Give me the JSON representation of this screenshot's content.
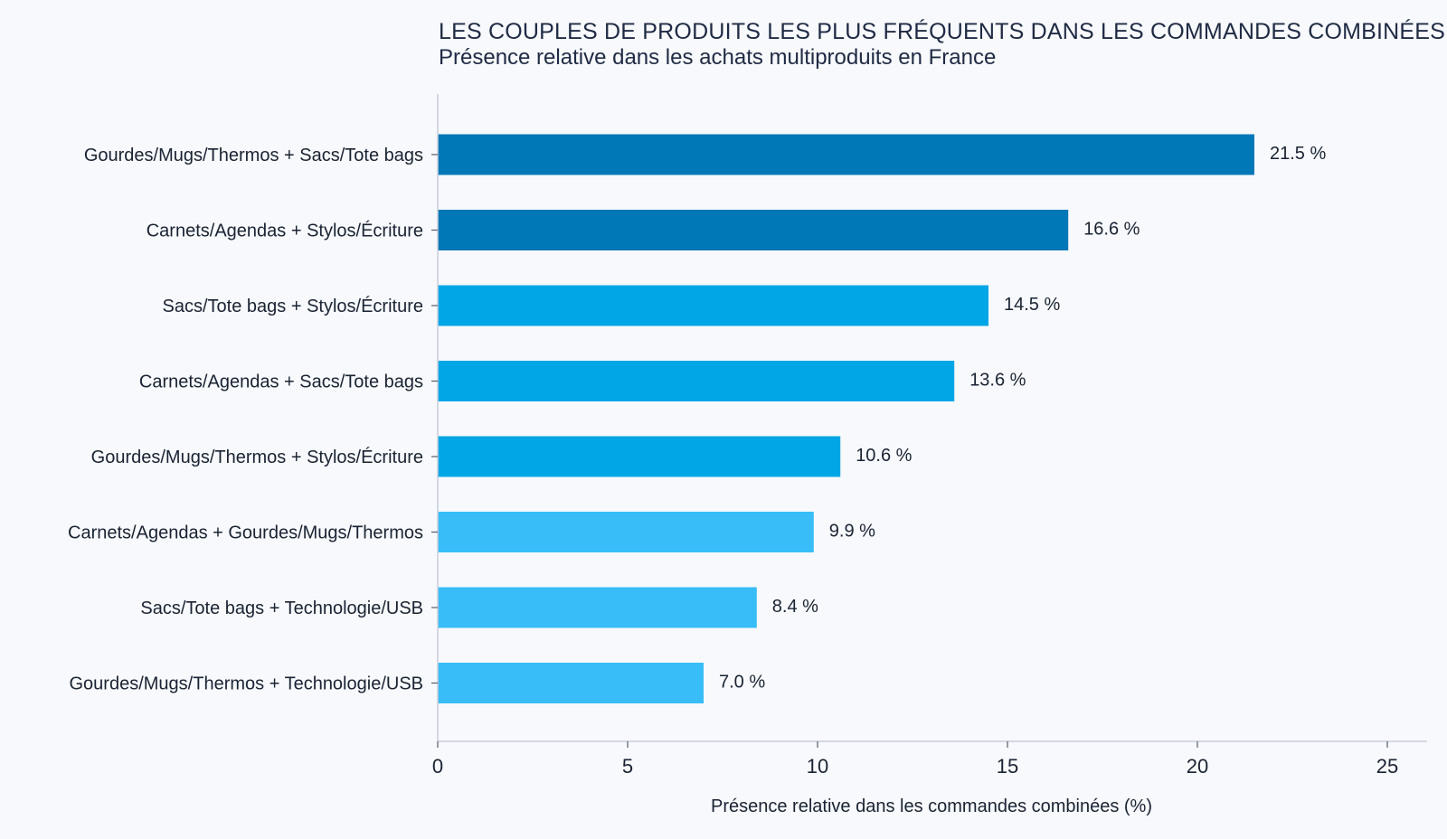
{
  "chart_data": {
    "type": "bar",
    "orientation": "horizontal",
    "title": "LES COUPLES DE PRODUITS LES PLUS FRÉQUENTS DANS LES COMMANDES COMBINÉES",
    "subtitle": "Présence relative dans les achats multiproduits en France",
    "xlabel": "Présence relative dans les commandes combinées (%)",
    "ylabel": "",
    "xlim": [
      0,
      26
    ],
    "xticks": [
      0,
      5,
      10,
      15,
      20,
      25
    ],
    "grid": false,
    "categories": [
      "Gourdes/Mugs/Thermos + Sacs/Tote bags",
      "Carnets/Agendas + Stylos/Écriture",
      "Sacs/Tote bags + Stylos/Écriture",
      "Carnets/Agendas + Sacs/Tote bags",
      "Gourdes/Mugs/Thermos + Stylos/Écriture",
      "Carnets/Agendas + Gourdes/Mugs/Thermos",
      "Sacs/Tote bags + Technologie/USB",
      "Gourdes/Mugs/Thermos + Technologie/USB"
    ],
    "values": [
      21.5,
      16.6,
      14.5,
      13.6,
      10.6,
      9.9,
      8.4,
      7.0
    ],
    "value_labels": [
      "21.5 %",
      "16.6 %",
      "14.5 %",
      "13.6 %",
      "10.6 %",
      "9.9 %",
      "8.4 %",
      "7.0 %"
    ],
    "bar_colors": [
      "#0077b6",
      "#0077b6",
      "#00a6e6",
      "#00a6e6",
      "#00a6e6",
      "#38bdf8",
      "#38bdf8",
      "#38bdf8"
    ],
    "axis_color": "#c8cedb"
  }
}
